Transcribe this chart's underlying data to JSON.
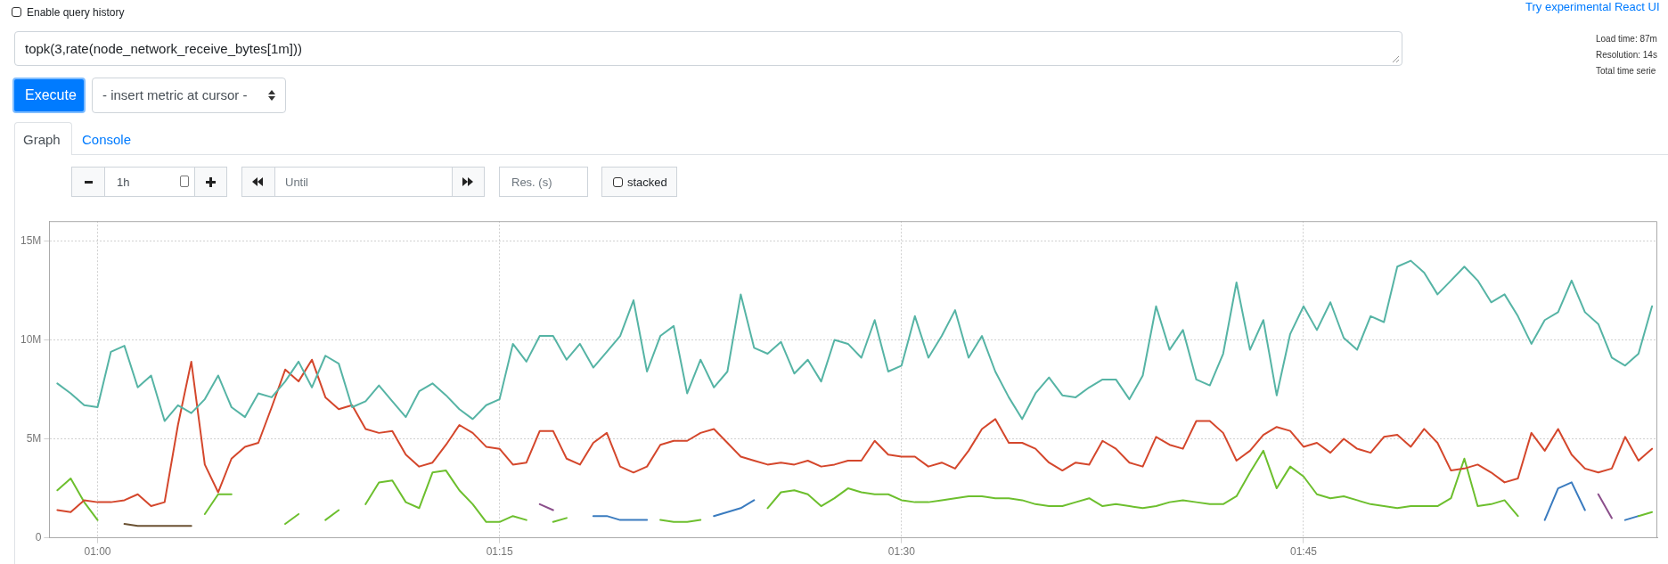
{
  "chart_data": {
    "type": "line",
    "annotations": [
      "Enable query history",
      "Try experimental React UI",
      "topk(3,rate(node_network_receive_bytes[1m]))",
      "Load time: 87m",
      "Resolution: 14s",
      "Total time serie",
      "Execute",
      "- insert metric at cursor -",
      "Graph",
      "Console",
      "1h",
      "Until",
      "Res. (s)",
      "stacked"
    ],
    "x": [
      0.975,
      0.9833,
      0.9917,
      1,
      1.0083,
      1.0167,
      1.025,
      1.0333,
      1.0417,
      1.05,
      1.0583,
      1.0667,
      1.075,
      1.0833,
      1.0917,
      1.1,
      1.1083,
      1.1167,
      1.125,
      1.1333,
      1.1417,
      1.15,
      1.1583,
      1.1667,
      1.175,
      1.1833,
      1.1917,
      1.2,
      1.2083,
      1.2167,
      1.225,
      1.2333,
      1.2417,
      1.25,
      1.2583,
      1.2667,
      1.275,
      1.2833,
      1.2917,
      1.3,
      1.3083,
      1.3167,
      1.325,
      1.3333,
      1.3417,
      1.35,
      1.3583,
      1.3667,
      1.375,
      1.3833,
      1.3917,
      1.4,
      1.4083,
      1.4167,
      1.425,
      1.4333,
      1.4417,
      1.45,
      1.4583,
      1.4667,
      1.475,
      1.4833,
      1.4917,
      1.5,
      1.5083,
      1.5167,
      1.525,
      1.5333,
      1.5417,
      1.55,
      1.5583,
      1.5667,
      1.575,
      1.5833,
      1.5917,
      1.6,
      1.6083,
      1.6167,
      1.625,
      1.6333,
      1.6417,
      1.65,
      1.6583,
      1.6667,
      1.675,
      1.6833,
      1.6917,
      1.7,
      1.7083,
      1.7167,
      1.725,
      1.7333,
      1.7417,
      1.75,
      1.7583,
      1.7667,
      1.775,
      1.7833,
      1.7917,
      1.8,
      1.8083,
      1.8167,
      1.825,
      1.8333,
      1.8417,
      1.85,
      1.8583,
      1.8667,
      1.875,
      1.8833,
      1.8917,
      1.9,
      1.9083,
      1.9167,
      1.925,
      1.9333,
      1.9417,
      1.95,
      1.9583,
      1.9667
    ],
    "series": [
      {
        "color": "#56b4a5",
        "values": [
          7.8,
          7.3,
          6.7,
          6.6,
          9.4,
          9.7,
          7.6,
          8.2,
          5.9,
          6.7,
          6.3,
          7.0,
          8.2,
          6.6,
          6.1,
          7.3,
          7.1,
          7.9,
          8.9,
          7.6,
          9.2,
          8.8,
          6.6,
          6.9,
          7.7,
          6.9,
          6.1,
          7.4,
          7.8,
          7.2,
          6.5,
          6.0,
          6.7,
          7.0,
          9.8,
          8.9,
          10.2,
          10.2,
          9.0,
          9.8,
          8.6,
          9.4,
          10.2,
          12.0,
          8.4,
          10.2,
          10.7,
          7.3,
          9.0,
          7.6,
          8.4,
          12.3,
          9.6,
          9.3,
          9.9,
          8.3,
          9.0,
          7.9,
          10.0,
          9.8,
          9.1,
          11.0,
          8.4,
          8.7,
          11.2,
          9.1,
          10.2,
          11.5,
          9.1,
          10.2,
          8.4,
          7.1,
          6.0,
          7.3,
          8.1,
          7.2,
          7.1,
          7.6,
          8.0,
          8.0,
          7.0,
          8.2,
          11.7,
          9.5,
          10.5,
          8.0,
          7.7,
          9.3,
          12.9,
          9.5,
          11.0,
          7.2,
          10.3,
          11.7,
          10.5,
          11.9,
          10.1,
          9.5,
          11.2,
          10.9,
          13.7,
          14.0,
          13.4,
          12.3,
          13.0,
          13.7,
          13.0,
          11.9,
          12.3,
          11.2,
          9.8,
          11.0,
          11.4,
          13.0,
          11.4,
          10.8,
          9.1,
          8.7,
          9.3,
          11.7
        ]
      },
      {
        "color": "#d4472c",
        "values": [
          1.4,
          1.3,
          1.9,
          1.8,
          1.8,
          1.9,
          2.2,
          1.6,
          1.8,
          5.7,
          8.9,
          3.7,
          2.3,
          4.0,
          4.6,
          4.8,
          6.6,
          8.5,
          7.9,
          9.0,
          7.1,
          6.5,
          6.7,
          5.5,
          5.3,
          5.4,
          4.2,
          3.6,
          3.8,
          4.7,
          5.7,
          5.3,
          4.6,
          4.5,
          3.7,
          3.8,
          5.4,
          5.4,
          4.0,
          3.7,
          4.8,
          5.3,
          3.6,
          3.3,
          3.6,
          4.7,
          4.9,
          4.9,
          5.3,
          5.5,
          4.8,
          4.1,
          3.9,
          3.7,
          3.8,
          3.7,
          3.9,
          3.6,
          3.7,
          3.9,
          3.9,
          4.9,
          4.2,
          4.1,
          4.1,
          3.6,
          3.8,
          3.5,
          4.4,
          5.5,
          6.0,
          4.8,
          4.8,
          4.5,
          3.8,
          3.4,
          3.8,
          3.7,
          4.9,
          4.5,
          3.8,
          3.6,
          5.1,
          4.7,
          4.5,
          5.9,
          5.9,
          5.3,
          3.9,
          4.4,
          5.2,
          5.6,
          5.4,
          4.6,
          4.8,
          4.3,
          5.0,
          4.5,
          4.3,
          5.1,
          5.2,
          4.6,
          5.5,
          4.8,
          3.4,
          3.5,
          3.7,
          3.3,
          2.8,
          3.0,
          5.3,
          4.4,
          5.5,
          4.2,
          3.5,
          3.3,
          3.5,
          5.1,
          3.9,
          4.5
        ]
      },
      {
        "color": "#6dbf2e",
        "values": [
          2.4,
          3.0,
          1.8,
          0.9,
          null,
          null,
          null,
          null,
          null,
          null,
          null,
          1.2,
          2.2,
          2.2,
          null,
          null,
          null,
          0.7,
          1.2,
          null,
          0.9,
          1.4,
          null,
          1.7,
          2.8,
          2.9,
          1.8,
          1.5,
          3.3,
          3.4,
          2.4,
          1.7,
          0.8,
          0.8,
          1.1,
          0.9,
          null,
          0.8,
          1.0,
          null,
          null,
          null,
          null,
          null,
          null,
          0.9,
          0.8,
          0.8,
          0.9,
          null,
          null,
          null,
          null,
          1.5,
          2.3,
          2.4,
          2.2,
          1.6,
          2.0,
          2.5,
          2.3,
          2.2,
          2.2,
          1.9,
          1.8,
          1.8,
          1.9,
          2.0,
          2.1,
          2.1,
          2.0,
          2.0,
          1.9,
          1.7,
          1.6,
          1.6,
          1.8,
          2.0,
          1.6,
          1.7,
          1.6,
          1.5,
          1.6,
          1.8,
          1.9,
          1.8,
          1.7,
          1.7,
          2.1,
          3.3,
          4.4,
          2.5,
          3.6,
          3.1,
          2.2,
          2.0,
          2.1,
          1.9,
          1.7,
          1.6,
          1.5,
          1.6,
          1.6,
          1.6,
          2.0,
          4.0,
          1.6,
          1.7,
          1.9,
          1.1,
          null,
          null,
          null,
          null,
          null,
          null,
          null,
          null,
          1.1,
          1.3
        ]
      },
      {
        "color": "#3a7bbf",
        "x": [
          1.3083,
          1.3167,
          1.325,
          1.3333,
          1.3417,
          1.35,
          1.3833,
          1.3917,
          1.4,
          1.4083,
          1.6667,
          1.9,
          1.9083,
          1.9167,
          1.925,
          1.9333,
          1.95,
          1.9583
        ],
        "values": [
          1.1,
          1.1,
          0.9,
          0.9,
          0.9,
          null,
          1.1,
          1.3,
          1.5,
          1.9,
          null,
          0.9,
          2.5,
          2.8,
          1.4,
          null,
          0.9,
          1.1
        ]
      },
      {
        "color": "#6b5233",
        "x": [
          1.0167,
          1.025,
          1.0333,
          1.0417,
          1.05,
          1.0583
        ],
        "values": [
          0.7,
          0.6,
          0.6,
          0.6,
          0.6,
          0.6
        ]
      },
      {
        "color": "#8b4f8b",
        "x": [
          1.275,
          1.2833,
          1.5,
          1.9333,
          1.9417
        ],
        "values": [
          1.7,
          1.4,
          null,
          2.2,
          1.0
        ]
      }
    ],
    "xlim": [
      0.97,
      1.97
    ],
    "xticks": [
      {
        "value": 1,
        "label": "01:00"
      },
      {
        "value": 1.25,
        "label": "01:15"
      },
      {
        "value": 1.5,
        "label": "01:30"
      },
      {
        "value": 1.75,
        "label": "01:45"
      }
    ],
    "ylim": [
      0,
      16
    ],
    "yticks": [
      0,
      {
        "value": 5,
        "label": "5M"
      },
      {
        "value": 10,
        "label": "10M"
      },
      {
        "value": 15,
        "label": "15M"
      }
    ],
    "grid": true
  }
}
